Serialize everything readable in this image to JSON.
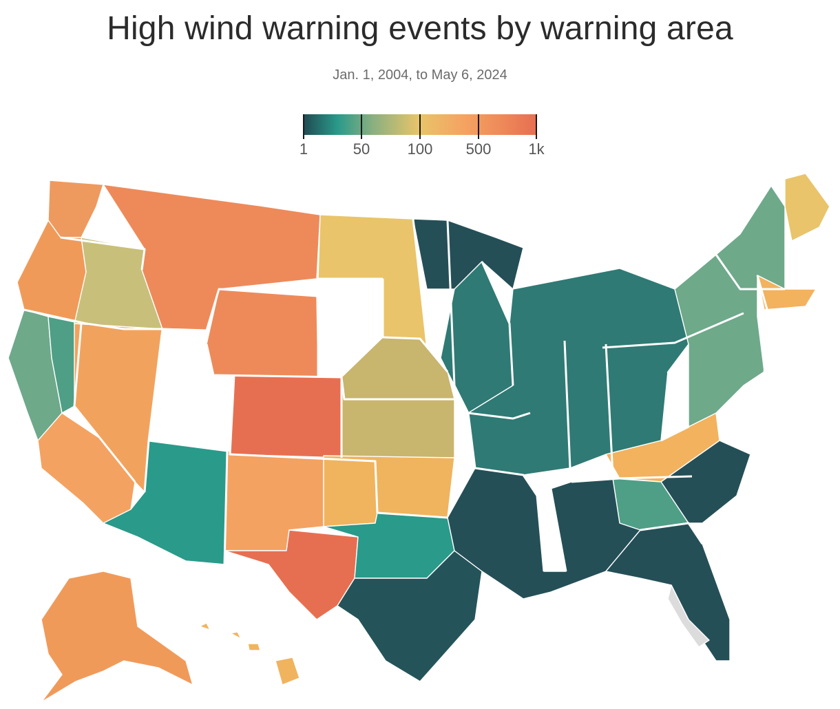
{
  "title": "High wind warning events by warning area",
  "subtitle": "Jan. 1, 2004, to May 6, 2024",
  "legend": {
    "ticks": [
      {
        "label": "1"
      },
      {
        "label": "50"
      },
      {
        "label": "100"
      },
      {
        "label": "500"
      },
      {
        "label": "1k"
      }
    ],
    "scale": "log",
    "colors": {
      "1": "#1f4a52",
      "50": "#6ea98a",
      "100": "#e9c46a",
      "500": "#f4a261",
      "1k": "#e76f51"
    }
  },
  "map": {
    "no_data_color": "#dcdcdc",
    "regions": [
      {
        "name": "washington-coast",
        "color": "#ee9a5e"
      },
      {
        "name": "oregon-coast",
        "color": "#f09a5a"
      },
      {
        "name": "california-coast",
        "color": "#6ea98a"
      },
      {
        "name": "central-valley",
        "color": "#4e9f86"
      },
      {
        "name": "southern-california",
        "color": "#f4a261"
      },
      {
        "name": "nevada",
        "color": "#f1a35e"
      },
      {
        "name": "great-basin",
        "color": "#c8c07a"
      },
      {
        "name": "arizona-south",
        "color": "#2a9a8a"
      },
      {
        "name": "new-mexico",
        "color": "#f4a261"
      },
      {
        "name": "west-texas",
        "color": "#e76f51"
      },
      {
        "name": "montana",
        "color": "#ee8a5a"
      },
      {
        "name": "wyoming",
        "color": "#ee8a5a"
      },
      {
        "name": "colorado-front-range",
        "color": "#e76f51"
      },
      {
        "name": "dakotas",
        "color": "#e9c46a"
      },
      {
        "name": "nebraska-kansas",
        "color": "#c8b56e"
      },
      {
        "name": "oklahoma-panhandle",
        "color": "#f0b45e"
      },
      {
        "name": "texas-central",
        "color": "#2a9a8a"
      },
      {
        "name": "texas-east-gulf",
        "color": "#24545a"
      },
      {
        "name": "upper-midwest",
        "color": "#254f57"
      },
      {
        "name": "great-lakes",
        "color": "#2f7a74"
      },
      {
        "name": "ohio-valley",
        "color": "#2f7a74"
      },
      {
        "name": "appalachia",
        "color": "#f2b25e"
      },
      {
        "name": "carolinas",
        "color": "#254f57"
      },
      {
        "name": "georgia",
        "color": "#4e9f86"
      },
      {
        "name": "gulf-states",
        "color": "#254f57"
      },
      {
        "name": "florida",
        "color": "#254f57"
      },
      {
        "name": "florida-gulf-no-data",
        "color": "#dcdcdc"
      },
      {
        "name": "northeast",
        "color": "#6ea98a"
      },
      {
        "name": "new-england-coast",
        "color": "#f2b25e"
      },
      {
        "name": "maine",
        "color": "#e9c46a"
      },
      {
        "name": "alaska",
        "color": "#f09a5a"
      },
      {
        "name": "hawaii",
        "color": "#f0b45e"
      }
    ]
  }
}
